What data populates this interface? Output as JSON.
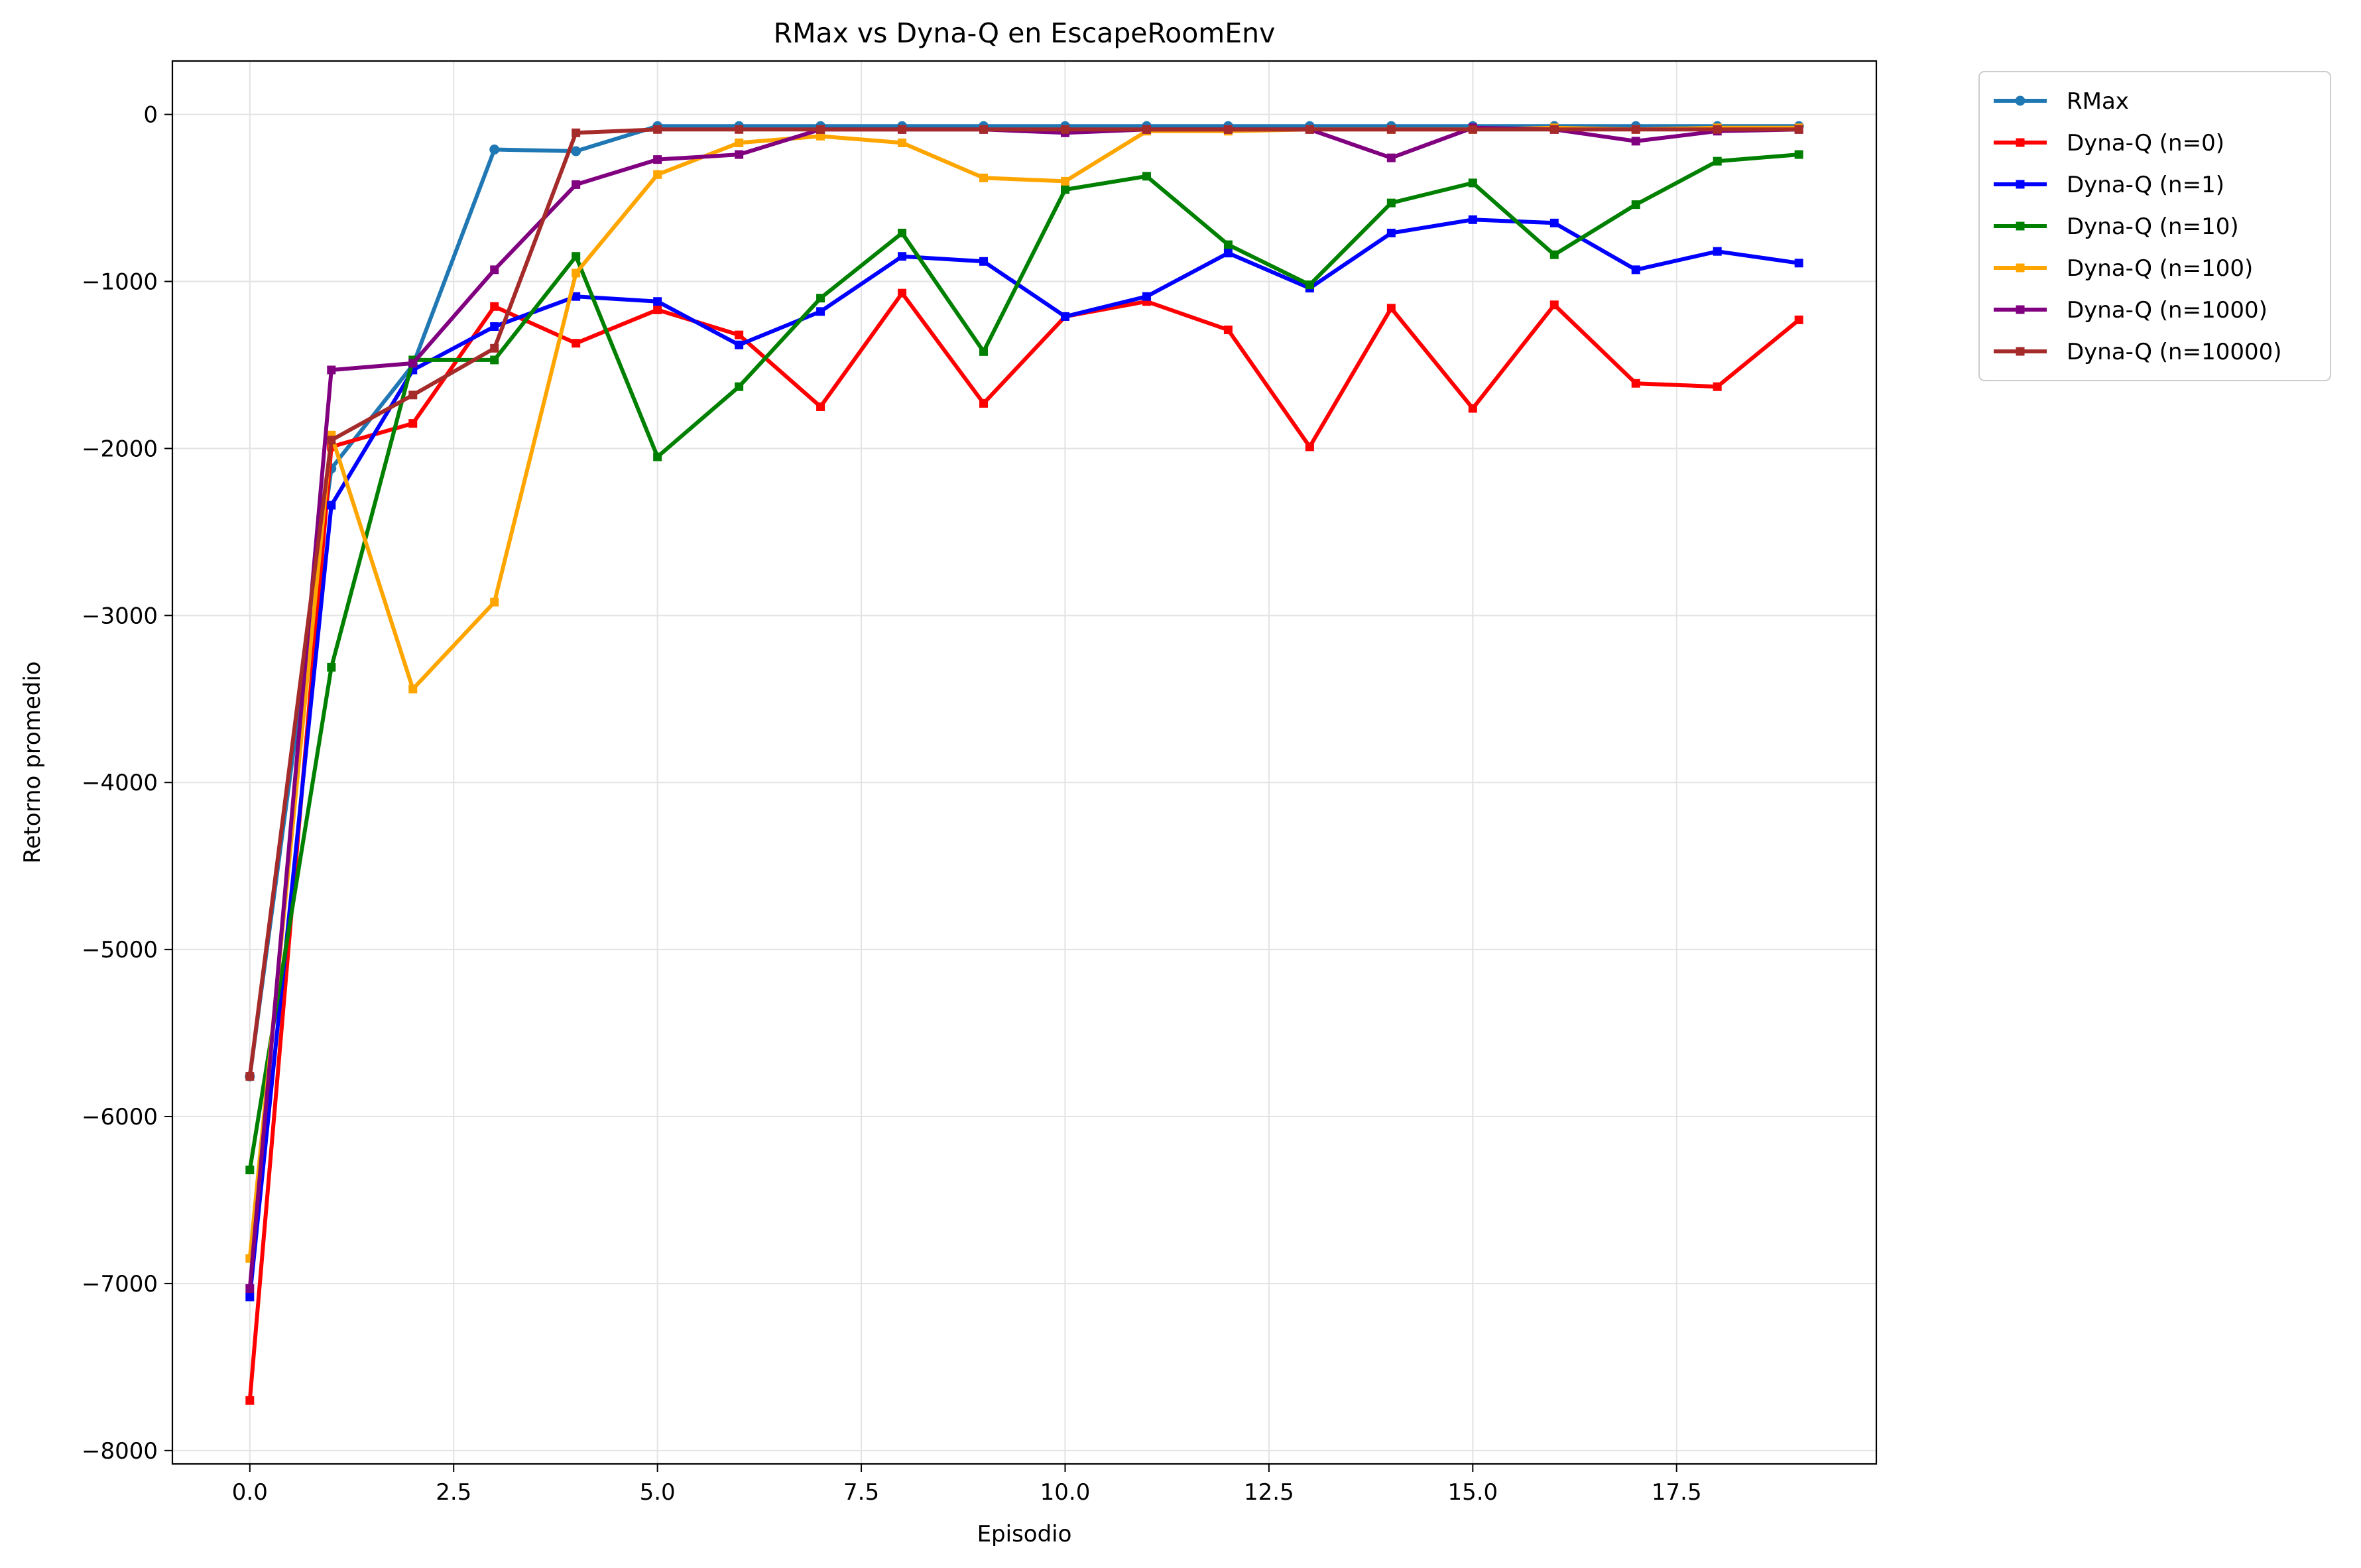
{
  "chart_data": {
    "type": "line",
    "title": "RMax vs Dyna-Q en EscapeRoomEnv",
    "xlabel": "Episodio",
    "ylabel": "Retorno promedio",
    "xlim": [
      -0.95,
      19.95
    ],
    "ylim": [
      -8080,
      320
    ],
    "xticks": [
      0.0,
      2.5,
      5.0,
      7.5,
      10.0,
      12.5,
      15.0,
      17.5
    ],
    "xtick_labels": [
      "0.0",
      "2.5",
      "5.0",
      "7.5",
      "10.0",
      "12.5",
      "15.0",
      "17.5"
    ],
    "yticks": [
      0,
      -1000,
      -2000,
      -3000,
      -4000,
      -5000,
      -6000,
      -7000,
      -8000
    ],
    "ytick_labels": [
      "0",
      "−1000",
      "−2000",
      "−3000",
      "−4000",
      "−5000",
      "−6000",
      "−7000",
      "−8000"
    ],
    "grid": true,
    "legend_position": "outside-top-right",
    "x": [
      0,
      1,
      2,
      3,
      4,
      5,
      6,
      7,
      8,
      9,
      10,
      11,
      12,
      13,
      14,
      15,
      16,
      17,
      18,
      19
    ],
    "series": [
      {
        "name": "RMax",
        "color": "#1f77b4",
        "marker": "circle",
        "values": [
          -5760,
          -2120,
          -1500,
          -210,
          -220,
          -70,
          -70,
          -70,
          -70,
          -70,
          -70,
          -70,
          -70,
          -70,
          -70,
          -70,
          -70,
          -70,
          -70,
          -70
        ]
      },
      {
        "name": "Dyna-Q (n=0)",
        "color": "#ff0000",
        "marker": "square",
        "values": [
          -7700,
          -1990,
          -1850,
          -1150,
          -1370,
          -1170,
          -1320,
          -1750,
          -1070,
          -1730,
          -1210,
          -1120,
          -1290,
          -1990,
          -1160,
          -1760,
          -1140,
          -1610,
          -1630,
          -1230
        ]
      },
      {
        "name": "Dyna-Q (n=1)",
        "color": "#0000ff",
        "marker": "square",
        "values": [
          -7080,
          -2340,
          -1530,
          -1270,
          -1090,
          -1120,
          -1380,
          -1180,
          -850,
          -880,
          -1210,
          -1090,
          -830,
          -1040,
          -710,
          -630,
          -650,
          -930,
          -820,
          -890
        ]
      },
      {
        "name": "Dyna-Q (n=10)",
        "color": "#008000",
        "marker": "square",
        "values": [
          -6320,
          -3310,
          -1470,
          -1470,
          -850,
          -2050,
          -1630,
          -1100,
          -710,
          -1420,
          -450,
          -370,
          -780,
          -1020,
          -530,
          -410,
          -840,
          -540,
          -280,
          -240
        ]
      },
      {
        "name": "Dyna-Q (n=100)",
        "color": "#ffa500",
        "marker": "square",
        "values": [
          -6850,
          -1920,
          -3440,
          -2920,
          -950,
          -360,
          -170,
          -130,
          -170,
          -380,
          -400,
          -100,
          -100,
          -90,
          -90,
          -90,
          -80,
          -90,
          -80,
          -80
        ]
      },
      {
        "name": "Dyna-Q (n=1000)",
        "color": "#800080",
        "marker": "square",
        "values": [
          -7030,
          -1530,
          -1490,
          -930,
          -420,
          -270,
          -240,
          -90,
          -90,
          -90,
          -110,
          -90,
          -90,
          -90,
          -260,
          -80,
          -90,
          -160,
          -100,
          -90
        ]
      },
      {
        "name": "Dyna-Q (n=10000)",
        "color": "#a52a2a",
        "marker": "square",
        "values": [
          -5760,
          -1950,
          -1680,
          -1400,
          -110,
          -90,
          -90,
          -90,
          -90,
          -90,
          -90,
          -90,
          -90,
          -90,
          -90,
          -90,
          -90,
          -90,
          -90,
          -90
        ]
      }
    ]
  }
}
